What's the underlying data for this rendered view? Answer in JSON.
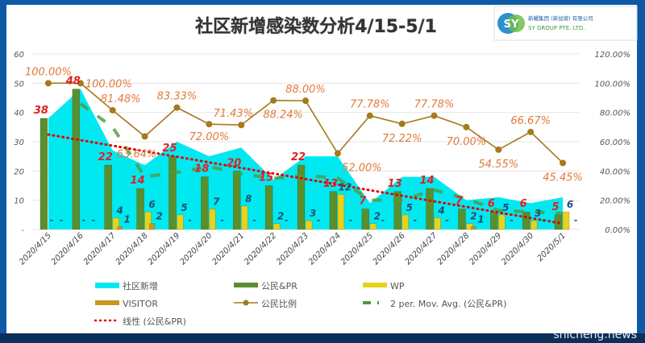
{
  "header": {
    "title": "社区新增感染数分析4/15-5/1",
    "logo_cn": "新耀集团 (新加坡) 有限公司",
    "logo_en": "SY GROUP PTE. LTD.",
    "logo_mark": "SY"
  },
  "watermark": "shicheng.news",
  "colors": {
    "area": "#00e8f0",
    "citizen": "#5a8f2e",
    "wp": "#e8d21a",
    "visitor": "#c9971a",
    "ratio": "#a57a1c",
    "movavg": "#4f9a3c",
    "trend": "#e00000",
    "ratio_label": "#e07a3a",
    "value_red": "#e02020",
    "value_teal": "#1d4f74"
  },
  "chart_data": {
    "type": "bar",
    "title": "社区新增感染数分析4/15-5/1",
    "categories": [
      "2020/4/15",
      "2020/4/16",
      "2020/4/17",
      "2020/4/18",
      "2020/4/19",
      "2020/4/20",
      "2020/4/21",
      "2020/4/22",
      "2020/4/23",
      "2020/4/24",
      "2020/4/25",
      "2020/4/26",
      "2020/4/27",
      "2020/4/28",
      "2020/4/29",
      "2020/4/30",
      "2020/5/1"
    ],
    "series": [
      {
        "name": "社区新增",
        "type": "area",
        "values": [
          38,
          48,
          27,
          22,
          30,
          25,
          28,
          17,
          25,
          25,
          9,
          18,
          18,
          10,
          11,
          9,
          11
        ]
      },
      {
        "name": "公民&PR",
        "type": "bar",
        "values": [
          38,
          48,
          22,
          14,
          25,
          18,
          20,
          15,
          22,
          13,
          7,
          13,
          14,
          7,
          6,
          6,
          5
        ]
      },
      {
        "name": "WP",
        "type": "bar",
        "values": [
          null,
          null,
          4,
          6,
          5,
          7,
          8,
          2,
          3,
          12,
          2,
          5,
          4,
          2,
          5,
          3,
          6
        ]
      },
      {
        "name": "VISITOR",
        "type": "bar",
        "values": [
          null,
          null,
          1,
          2,
          null,
          null,
          null,
          null,
          null,
          null,
          null,
          null,
          null,
          1,
          null,
          null,
          null
        ]
      },
      {
        "name": "公民比例",
        "type": "line",
        "axis": "right",
        "values": [
          100,
          100,
          81.48,
          63.64,
          83.33,
          72,
          71.43,
          88.24,
          88,
          52,
          77.78,
          72.22,
          77.78,
          70,
          54.55,
          66.67,
          45.45
        ],
        "labels": [
          "100.00%",
          "100.00%",
          "81.48%",
          "63.64%",
          "83.33%",
          "72.00%",
          "71.43%",
          "88.24%",
          "88.00%",
          "52.00%",
          "77.78%",
          "72.22%",
          "77.78%",
          "70.00%",
          "54.55%",
          "66.67%",
          "45.45%"
        ]
      },
      {
        "name": "2 per. Mov. Avg. (公民&PR)",
        "type": "moving_average"
      },
      {
        "name": "线性 (公民&PR)",
        "type": "linear_trend"
      }
    ],
    "left_axis": {
      "ylim": [
        0,
        60
      ],
      "ticks": [
        "-",
        "10",
        "20",
        "30",
        "40",
        "50",
        "60"
      ]
    },
    "right_axis": {
      "ylim": [
        0,
        120
      ],
      "ticks": [
        "0.00%",
        "20.00%",
        "40.00%",
        "60.00%",
        "80.00%",
        "100.00%",
        "120.00%"
      ]
    },
    "grid": true,
    "legend_position": "bottom",
    "missing_label": "-"
  }
}
